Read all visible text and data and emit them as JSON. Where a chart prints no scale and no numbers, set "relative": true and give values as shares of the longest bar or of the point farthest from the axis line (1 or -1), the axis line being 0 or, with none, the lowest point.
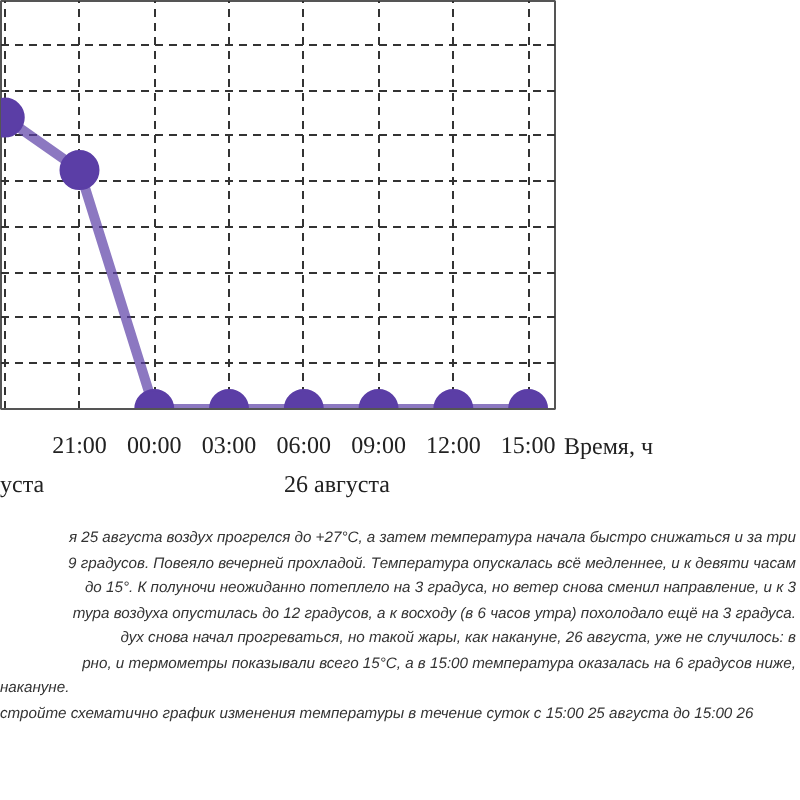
{
  "chart_data": {
    "type": "line",
    "relative": true,
    "categories": [
      null,
      "21:00",
      "00:00",
      "03:00",
      "06:00",
      "09:00",
      "12:00",
      "15:00"
    ],
    "series": [
      {
        "color": "#5b3ea6",
        "values": [
          1,
          0.82,
          0,
          0,
          0,
          0,
          0,
          0
        ]
      }
    ],
    "xlabel": "Время, ч",
    "grid": true,
    "marker": "circle",
    "line_style": "solid",
    "annotations": [
      "уста",
      "26 августа",
      "я 25 августа воздух прогрелся до +27°С, а затем температура начала быстро снижаться и за три",
      "9 градусов. Повеяло вечерней прохладой. Температура опускалась всё медленнее, и к девяти часам",
      " до 15°. К полуночи неожиданно потеплело на 3 градуса, но ветер снова сменил направление, и к 3",
      "тура воздуха опустилась до 12 градусов, а к восходу (в 6 часов утра) похолодало ещё на 3 градуса.",
      "дух снова начал прогреваться, но такой жары, как накануне, 26 августа, уже не случилось: в",
      "рно, и термометры показывали всего 15°С, а в 15:00 температура оказалась на 6 градусов ниже,",
      "накануне.",
      "стройте схематично график изменения температуры в течение суток с 15:00 25 августа до 15:00 26"
    ]
  }
}
